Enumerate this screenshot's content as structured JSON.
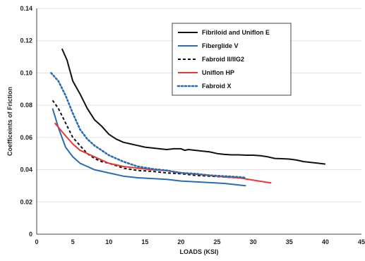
{
  "chart_data": {
    "type": "line",
    "title": "",
    "xlabel": "LOADS (KSI)",
    "ylabel": "Coefficeints of Friction",
    "xlim": [
      0,
      45
    ],
    "ylim": [
      0,
      0.14
    ],
    "x_ticks": [
      0,
      5,
      10,
      15,
      20,
      25,
      30,
      35,
      40,
      45
    ],
    "y_ticks": [
      0,
      0.02,
      0.04,
      0.06,
      0.08,
      0.1,
      0.12,
      0.14
    ],
    "x_tick_labels": [
      "0",
      "5",
      "10",
      "15",
      "20",
      "25",
      "30",
      "35",
      "40",
      "45"
    ],
    "y_tick_labels": [
      "0",
      "0.02",
      "0.04",
      "0.06",
      "0.08",
      "0.10",
      "0.12",
      "0.14"
    ],
    "grid": "horizontal",
    "legend_position": "top-right",
    "series": [
      {
        "name": "Fibriloid and Uniflon E",
        "color": "#111111",
        "dash": "solid",
        "x": [
          3.5,
          4.2,
          5,
          6,
          7,
          8,
          9,
          10,
          11,
          12,
          13,
          14,
          15,
          16,
          17,
          18,
          19,
          20,
          20.5,
          21,
          22,
          23,
          24,
          25,
          26,
          27,
          28,
          29,
          30,
          31,
          32,
          33,
          34,
          35,
          36,
          37,
          38,
          39,
          40
        ],
        "y": [
          0.115,
          0.108,
          0.095,
          0.087,
          0.078,
          0.071,
          0.067,
          0.062,
          0.059,
          0.057,
          0.056,
          0.055,
          0.054,
          0.0535,
          0.053,
          0.0525,
          0.053,
          0.053,
          0.052,
          0.0525,
          0.052,
          0.0515,
          0.051,
          0.05,
          0.0495,
          0.0492,
          0.0492,
          0.049,
          0.049,
          0.0487,
          0.048,
          0.047,
          0.0468,
          0.0466,
          0.046,
          0.045,
          0.0445,
          0.044,
          0.0435
        ]
      },
      {
        "name": "Fiberglide V",
        "color": "#2b6cb0",
        "dash": "solid",
        "x": [
          2.2,
          3,
          4,
          5,
          6,
          7,
          8,
          9,
          10,
          12,
          14,
          16,
          18,
          20,
          22,
          24,
          26,
          28,
          29
        ],
        "y": [
          0.078,
          0.066,
          0.054,
          0.048,
          0.044,
          0.042,
          0.04,
          0.039,
          0.038,
          0.036,
          0.035,
          0.0345,
          0.034,
          0.033,
          0.0325,
          0.032,
          0.0315,
          0.0305,
          0.03
        ]
      },
      {
        "name": "Fabroid II/IIG2",
        "color": "#111111",
        "dash": "4,3",
        "x": [
          2.2,
          3,
          4,
          5,
          6,
          7,
          8,
          9,
          10,
          12,
          14,
          16,
          18,
          20,
          22,
          24,
          26,
          28,
          29
        ],
        "y": [
          0.083,
          0.078,
          0.069,
          0.06,
          0.055,
          0.05,
          0.047,
          0.045,
          0.044,
          0.041,
          0.0395,
          0.039,
          0.038,
          0.0375,
          0.0365,
          0.036,
          0.0355,
          0.035,
          0.0348
        ]
      },
      {
        "name": "Uniflon HP",
        "color": "#e53935",
        "dash": "solid",
        "x": [
          2.5,
          4,
          5,
          6,
          7,
          8,
          9,
          10,
          12,
          14,
          16,
          18,
          20,
          22,
          24,
          26,
          28,
          30,
          32.5
        ],
        "y": [
          0.069,
          0.061,
          0.056,
          0.052,
          0.05,
          0.048,
          0.046,
          0.044,
          0.042,
          0.041,
          0.04,
          0.0395,
          0.038,
          0.0372,
          0.0365,
          0.0355,
          0.035,
          0.0335,
          0.0318
        ]
      },
      {
        "name": "Fabroid X",
        "color": "#2b6cb0",
        "dash": "2,3",
        "x": [
          2,
          3,
          4,
          5,
          6,
          7,
          8,
          9,
          10,
          11,
          12,
          14,
          16,
          18,
          20,
          22,
          24,
          26,
          28,
          29
        ],
        "y": [
          0.1,
          0.095,
          0.086,
          0.075,
          0.065,
          0.059,
          0.055,
          0.052,
          0.049,
          0.047,
          0.045,
          0.042,
          0.0405,
          0.0395,
          0.038,
          0.0375,
          0.0365,
          0.036,
          0.0355,
          0.035
        ]
      }
    ]
  }
}
